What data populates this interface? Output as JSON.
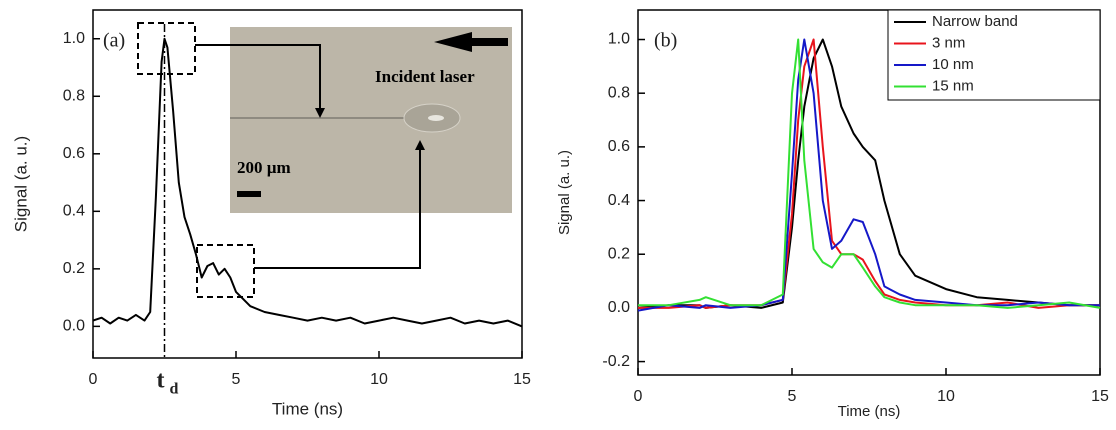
{
  "chart_data": [
    {
      "type": "line",
      "panel_label": "(a)",
      "x_label": "Time (ns)",
      "y_label": "Signal (a. u.)",
      "xlim": [
        0,
        15
      ],
      "xticks": [
        0,
        5,
        10,
        15
      ],
      "ylim": [
        -0.11,
        1.1
      ],
      "yticks": [
        {
          "value": 0,
          "label": "0.0"
        },
        {
          "value": 0.2,
          "label": "0.2"
        },
        {
          "value": 0.4,
          "label": "0.4"
        },
        {
          "value": 0.6,
          "label": "0.6"
        },
        {
          "value": 0.8,
          "label": "0.8"
        },
        {
          "value": 1,
          "label": "1.0"
        }
      ],
      "marker": {
        "x": 2.5,
        "label": "t",
        "subscript": "d"
      },
      "inset_labels": [
        "Incident laser",
        "200 µm"
      ],
      "x": [
        0,
        0.3,
        0.6,
        0.9,
        1.2,
        1.5,
        1.8,
        2.0,
        2.2,
        2.4,
        2.5,
        2.6,
        2.8,
        3.0,
        3.2,
        3.4,
        3.6,
        3.8,
        4.0,
        4.2,
        4.4,
        4.6,
        4.8,
        5.0,
        5.2,
        5.5,
        6,
        6.5,
        7,
        7.5,
        8,
        8.5,
        9,
        9.5,
        10,
        10.5,
        11,
        11.5,
        12,
        12.5,
        13,
        13.5,
        14,
        14.5,
        15
      ],
      "series": [
        {
          "color": "#000000",
          "values": [
            0.02,
            0.03,
            0.01,
            0.03,
            0.02,
            0.04,
            0.02,
            0.05,
            0.45,
            0.92,
            1.0,
            0.97,
            0.75,
            0.5,
            0.38,
            0.32,
            0.25,
            0.17,
            0.21,
            0.22,
            0.18,
            0.2,
            0.17,
            0.12,
            0.1,
            0.07,
            0.05,
            0.04,
            0.03,
            0.02,
            0.03,
            0.02,
            0.03,
            0.01,
            0.02,
            0.03,
            0.02,
            0.01,
            0.02,
            0.03,
            0.01,
            0.02,
            0.01,
            0.02,
            0.0
          ]
        }
      ]
    },
    {
      "type": "line",
      "panel_label": "(b)",
      "x_label": "Time (ns)",
      "y_label": "Signal (a. u.)",
      "xlim": [
        0,
        15
      ],
      "xticks": [
        0,
        5,
        10,
        15
      ],
      "ylim": [
        -0.25,
        1.11
      ],
      "yticks": [
        -0.2,
        {
          "value": 0,
          "label": "0.0"
        },
        0.2,
        0.4,
        0.6,
        0.8,
        {
          "value": 1,
          "label": "1.0"
        }
      ],
      "legend": "upper right",
      "x": [
        0,
        1,
        2,
        2.2,
        3,
        4,
        4.7,
        5.0,
        5.2,
        5.4,
        5.7,
        6.0,
        6.3,
        6.6,
        7.0,
        7.3,
        7.7,
        8.0,
        8.5,
        9,
        10,
        11,
        12,
        13,
        14,
        15
      ],
      "series": [
        {
          "name": "Narrow band",
          "color": "#000000",
          "values": [
            0,
            0.01,
            0.01,
            0.0,
            0.01,
            0.0,
            0.02,
            0.3,
            0.55,
            0.75,
            0.93,
            1.0,
            0.9,
            0.75,
            0.65,
            0.6,
            0.55,
            0.4,
            0.2,
            0.12,
            0.07,
            0.04,
            0.03,
            0.02,
            0.01,
            0.01
          ]
        },
        {
          "name": "3 nm",
          "color": "#e8141c",
          "values": [
            0,
            0.0,
            0.01,
            0.0,
            0.01,
            0.01,
            0.03,
            0.35,
            0.7,
            0.9,
            1.0,
            0.6,
            0.25,
            0.2,
            0.2,
            0.18,
            0.1,
            0.05,
            0.03,
            0.02,
            0.01,
            0.01,
            0.02,
            0.0,
            0.01,
            0.01
          ]
        },
        {
          "name": "10 nm",
          "color": "#1518c8",
          "values": [
            -0.01,
            0.01,
            0.0,
            0.01,
            0.0,
            0.01,
            0.03,
            0.5,
            0.85,
            1.0,
            0.8,
            0.4,
            0.22,
            0.25,
            0.33,
            0.32,
            0.2,
            0.08,
            0.05,
            0.03,
            0.02,
            0.01,
            0.01,
            0.02,
            0.01,
            0.01
          ]
        },
        {
          "name": "15 nm",
          "color": "#33e033",
          "values": [
            0.01,
            0.01,
            0.03,
            0.04,
            0.01,
            0.01,
            0.05,
            0.8,
            1.0,
            0.55,
            0.22,
            0.17,
            0.15,
            0.2,
            0.2,
            0.15,
            0.08,
            0.04,
            0.02,
            0.01,
            0.01,
            0.01,
            0.0,
            0.01,
            0.02,
            0.0
          ]
        }
      ]
    }
  ]
}
